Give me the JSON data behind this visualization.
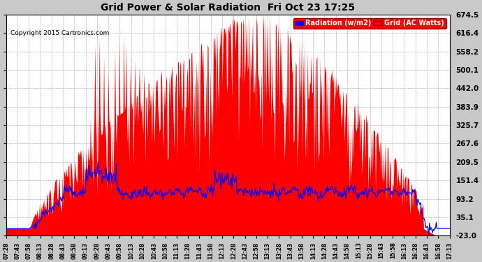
{
  "title": "Grid Power & Solar Radiation  Fri Oct 23 17:25",
  "copyright": "Copyright 2015 Cartronics.com",
  "background_color": "#c8c8c8",
  "plot_bg_color": "#ffffff",
  "grid_color": "#a0a0a0",
  "yticks": [
    -23.0,
    35.1,
    93.2,
    151.4,
    209.5,
    267.6,
    325.7,
    383.9,
    442.0,
    500.1,
    558.2,
    616.4,
    674.5
  ],
  "ylim": [
    -23.0,
    674.5
  ],
  "legend_radiation_label": "Radiation (w/m2)",
  "legend_grid_label": "Grid (AC Watts)",
  "radiation_color": "#0000ff",
  "grid_fill_color": "#ff0000",
  "xtick_labels": [
    "07:28",
    "07:43",
    "07:58",
    "08:13",
    "08:28",
    "08:43",
    "08:58",
    "09:13",
    "09:28",
    "09:43",
    "09:58",
    "10:13",
    "10:28",
    "10:43",
    "10:58",
    "11:13",
    "11:28",
    "11:43",
    "11:58",
    "12:13",
    "12:28",
    "12:43",
    "12:58",
    "13:13",
    "13:28",
    "13:43",
    "13:58",
    "14:13",
    "14:28",
    "14:43",
    "14:58",
    "15:13",
    "15:28",
    "15:43",
    "15:58",
    "16:13",
    "16:28",
    "16:43",
    "16:58",
    "17:13"
  ],
  "n_points": 600
}
